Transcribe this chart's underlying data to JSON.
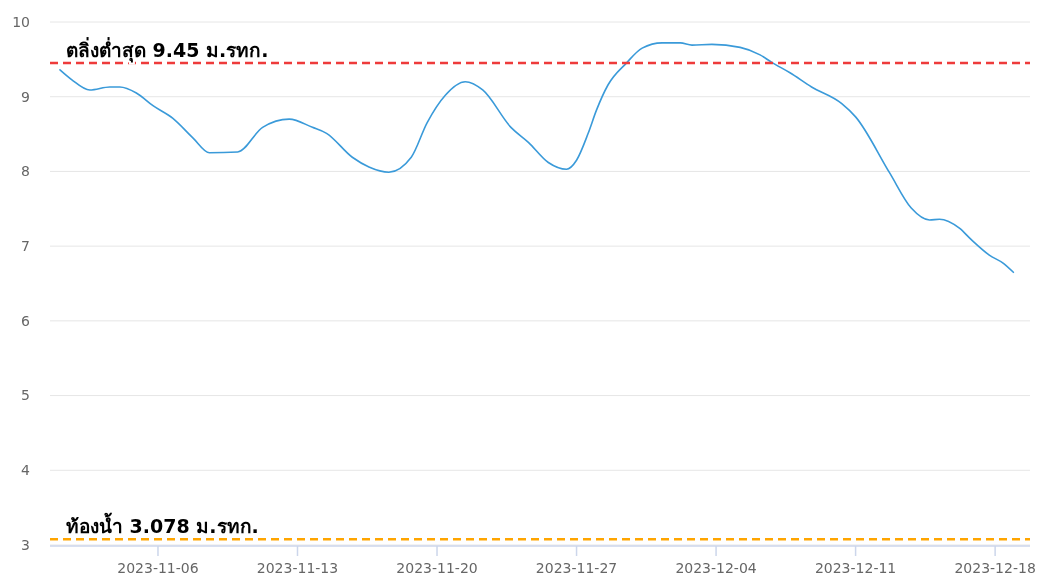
{
  "chart_data": {
    "type": "line",
    "xlim": [
      "2023-10-31T14:00",
      "2023-12-19T18:00"
    ],
    "xticks": [
      {
        "value": "2023-11-06",
        "label": "2023-11-06"
      },
      {
        "value": "2023-11-13",
        "label": "2023-11-13"
      },
      {
        "value": "2023-11-20",
        "label": "2023-11-20"
      },
      {
        "value": "2023-11-27",
        "label": "2023-11-27"
      },
      {
        "value": "2023-12-04",
        "label": "2023-12-04"
      },
      {
        "value": "2023-12-11",
        "label": "2023-12-11"
      },
      {
        "value": "2023-12-18",
        "label": "2023-12-18"
      }
    ],
    "ylim": [
      3,
      10
    ],
    "yticks": [
      3,
      4,
      5,
      6,
      7,
      8,
      9,
      10
    ],
    "grid": "y",
    "marker": "none",
    "line_style": "solid",
    "series": [
      {
        "color": "#3a9ad9",
        "x": [
          "2023-11-01T02:00",
          "2023-11-01T16:00",
          "2023-11-02T14:00",
          "2023-11-03T14:00",
          "2023-11-04T02:00",
          "2023-11-04T22:00",
          "2023-11-05T18:00",
          "2023-11-06T18:00",
          "2023-11-07T18:00",
          "2023-11-08T14:00",
          "2023-11-10T00:00",
          "2023-11-11T06:00",
          "2023-11-12T14:00",
          "2023-11-13T18:00",
          "2023-11-14T11:00",
          "2023-11-15T18:00",
          "2023-11-16T14:00",
          "2023-11-17T14:00",
          "2023-11-18T17:00",
          "2023-11-19T12:00",
          "2023-11-20T10:00",
          "2023-11-21T10:00",
          "2023-11-22T07:00",
          "2023-11-23T17:00",
          "2023-11-24T14:00",
          "2023-11-25T14:00",
          "2023-11-26T12:00",
          "2023-11-27T00:00",
          "2023-11-27T14:00",
          "2023-11-28T00:00",
          "2023-11-28T14:00",
          "2023-11-29T12:00",
          "2023-11-30T07:00",
          "2023-12-01T07:00",
          "2023-12-02T05:00",
          "2023-12-02T19:00",
          "2023-12-03T19:00",
          "2023-12-05T05:00",
          "2023-12-06T05:00",
          "2023-12-06T19:00",
          "2023-12-07T17:00",
          "2023-12-08T19:00",
          "2023-12-10T07:00",
          "2023-12-11T00:00",
          "2023-12-12T17:00",
          "2023-12-13T19:00",
          "2023-12-14T17:00",
          "2023-12-15T05:00",
          "2023-12-16T05:00",
          "2023-12-16T19:00",
          "2023-12-17T17:00",
          "2023-12-18T10:00",
          "2023-12-18T22:00"
        ],
        "values": [
          9.36,
          9.23,
          9.09,
          9.13,
          9.13,
          9.05,
          8.88,
          8.71,
          8.45,
          8.25,
          8.26,
          8.59,
          8.7,
          8.59,
          8.51,
          8.19,
          8.06,
          7.99,
          8.19,
          8.65,
          9.02,
          9.2,
          9.09,
          8.59,
          8.39,
          8.12,
          8.03,
          8.15,
          8.51,
          8.82,
          9.16,
          9.45,
          9.65,
          9.72,
          9.72,
          9.69,
          9.7,
          9.66,
          9.56,
          9.46,
          9.32,
          9.13,
          8.91,
          8.73,
          7.98,
          7.51,
          7.35,
          7.36,
          7.24,
          7.09,
          6.88,
          6.77,
          6.65
        ]
      }
    ],
    "ref_lines": [
      {
        "axis": "y",
        "value": 9.45,
        "label": "ตลิ่งต่ำสุด 9.45 ม.รทก.",
        "color": "#ee3b3b",
        "line_style": "dashed"
      },
      {
        "axis": "y",
        "value": 3.078,
        "label": "ท้องน้ำ 3.078 ม.รทก.",
        "color": "#ffa500",
        "line_style": "dashed"
      }
    ]
  }
}
